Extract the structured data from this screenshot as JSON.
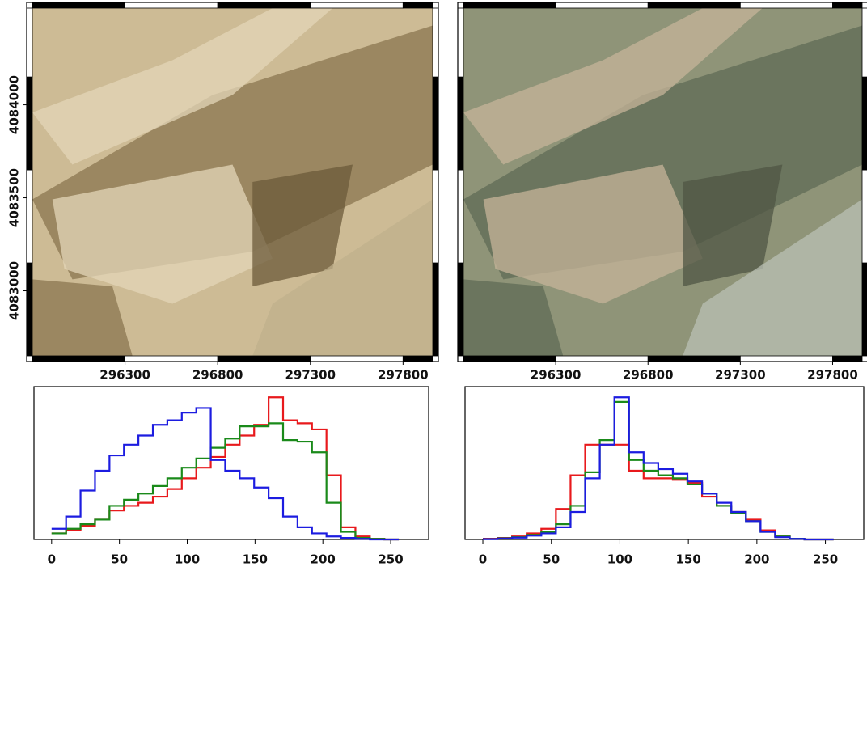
{
  "chart_data": [
    {
      "type": "image",
      "palette": [
        "#cdbb95",
        "#8a7650",
        "#e3d6b8",
        "#6b5a3a",
        "#bfb08c"
      ],
      "xlim": [
        295800,
        297960
      ],
      "ylim": [
        4082650,
        4084520
      ],
      "xticks": [
        296300,
        296800,
        297300,
        297800
      ],
      "yticks": [
        4083000,
        4083500,
        4084000
      ]
    },
    {
      "type": "image",
      "palette": [
        "#8f9478",
        "#5f6b55",
        "#c6b49a",
        "#4f5644",
        "#b9c0b4"
      ],
      "xlim": [
        295800,
        297960
      ],
      "ylim": [
        4082650,
        4084520
      ],
      "xticks": [
        296300,
        296800,
        297300,
        297800
      ]
    },
    {
      "type": "histogram",
      "xlim": [
        -13,
        278
      ],
      "ylim": [
        0,
        1
      ],
      "xticks": [
        0,
        50,
        100,
        150,
        200,
        250
      ],
      "bins": [
        0,
        10.67,
        21.33,
        32,
        42.67,
        53.33,
        64,
        74.67,
        85.33,
        96,
        106.67,
        117.33,
        128,
        138.67,
        149.33,
        160,
        170.67,
        181.33,
        192,
        202.67,
        213.33,
        224,
        234.67,
        245.33,
        256
      ],
      "series": [
        {
          "color": "#e8191c",
          "values": [
            0.04,
            0.06,
            0.09,
            0.13,
            0.19,
            0.22,
            0.24,
            0.28,
            0.33,
            0.4,
            0.47,
            0.54,
            0.62,
            0.68,
            0.75,
            0.93,
            0.78,
            0.76,
            0.72,
            0.42,
            0.08,
            0.02,
            0.005,
            0
          ]
        },
        {
          "color": "#1a8a1a",
          "values": [
            0.04,
            0.07,
            0.1,
            0.13,
            0.22,
            0.26,
            0.3,
            0.35,
            0.4,
            0.47,
            0.53,
            0.6,
            0.66,
            0.74,
            0.74,
            0.76,
            0.65,
            0.64,
            0.57,
            0.24,
            0.05,
            0.01,
            0.004,
            0
          ]
        },
        {
          "color": "#1c1ce0",
          "values": [
            0.07,
            0.15,
            0.32,
            0.45,
            0.55,
            0.62,
            0.68,
            0.75,
            0.78,
            0.83,
            0.86,
            0.52,
            0.45,
            0.4,
            0.34,
            0.27,
            0.15,
            0.08,
            0.04,
            0.02,
            0.01,
            0.004,
            0,
            0
          ]
        }
      ]
    },
    {
      "type": "histogram",
      "xlim": [
        -13,
        278
      ],
      "ylim": [
        0,
        1
      ],
      "xticks": [
        0,
        50,
        100,
        150,
        200,
        250
      ],
      "bins": [
        0,
        10.67,
        21.33,
        32,
        42.67,
        53.33,
        64,
        74.67,
        85.33,
        96,
        106.67,
        117.33,
        128,
        138.67,
        149.33,
        160,
        170.67,
        181.33,
        192,
        202.67,
        213.33,
        224,
        234.67,
        245.33,
        256
      ],
      "series": [
        {
          "color": "#e8191c",
          "values": [
            0.005,
            0.01,
            0.02,
            0.04,
            0.07,
            0.2,
            0.42,
            0.62,
            0.62,
            0.62,
            0.45,
            0.4,
            0.4,
            0.39,
            0.37,
            0.28,
            0.22,
            0.18,
            0.13,
            0.06,
            0.02,
            0.005,
            0,
            0
          ]
        },
        {
          "color": "#1a8a1a",
          "values": [
            0.003,
            0.008,
            0.015,
            0.03,
            0.05,
            0.1,
            0.22,
            0.44,
            0.65,
            0.9,
            0.52,
            0.45,
            0.42,
            0.4,
            0.36,
            0.3,
            0.22,
            0.17,
            0.12,
            0.05,
            0.02,
            0.005,
            0,
            0
          ]
        },
        {
          "color": "#1c1ce0",
          "values": [
            0.002,
            0.006,
            0.012,
            0.025,
            0.04,
            0.08,
            0.18,
            0.4,
            0.62,
            0.93,
            0.57,
            0.5,
            0.46,
            0.43,
            0.38,
            0.3,
            0.24,
            0.18,
            0.12,
            0.05,
            0.015,
            0.004,
            0,
            0
          ]
        }
      ]
    }
  ]
}
